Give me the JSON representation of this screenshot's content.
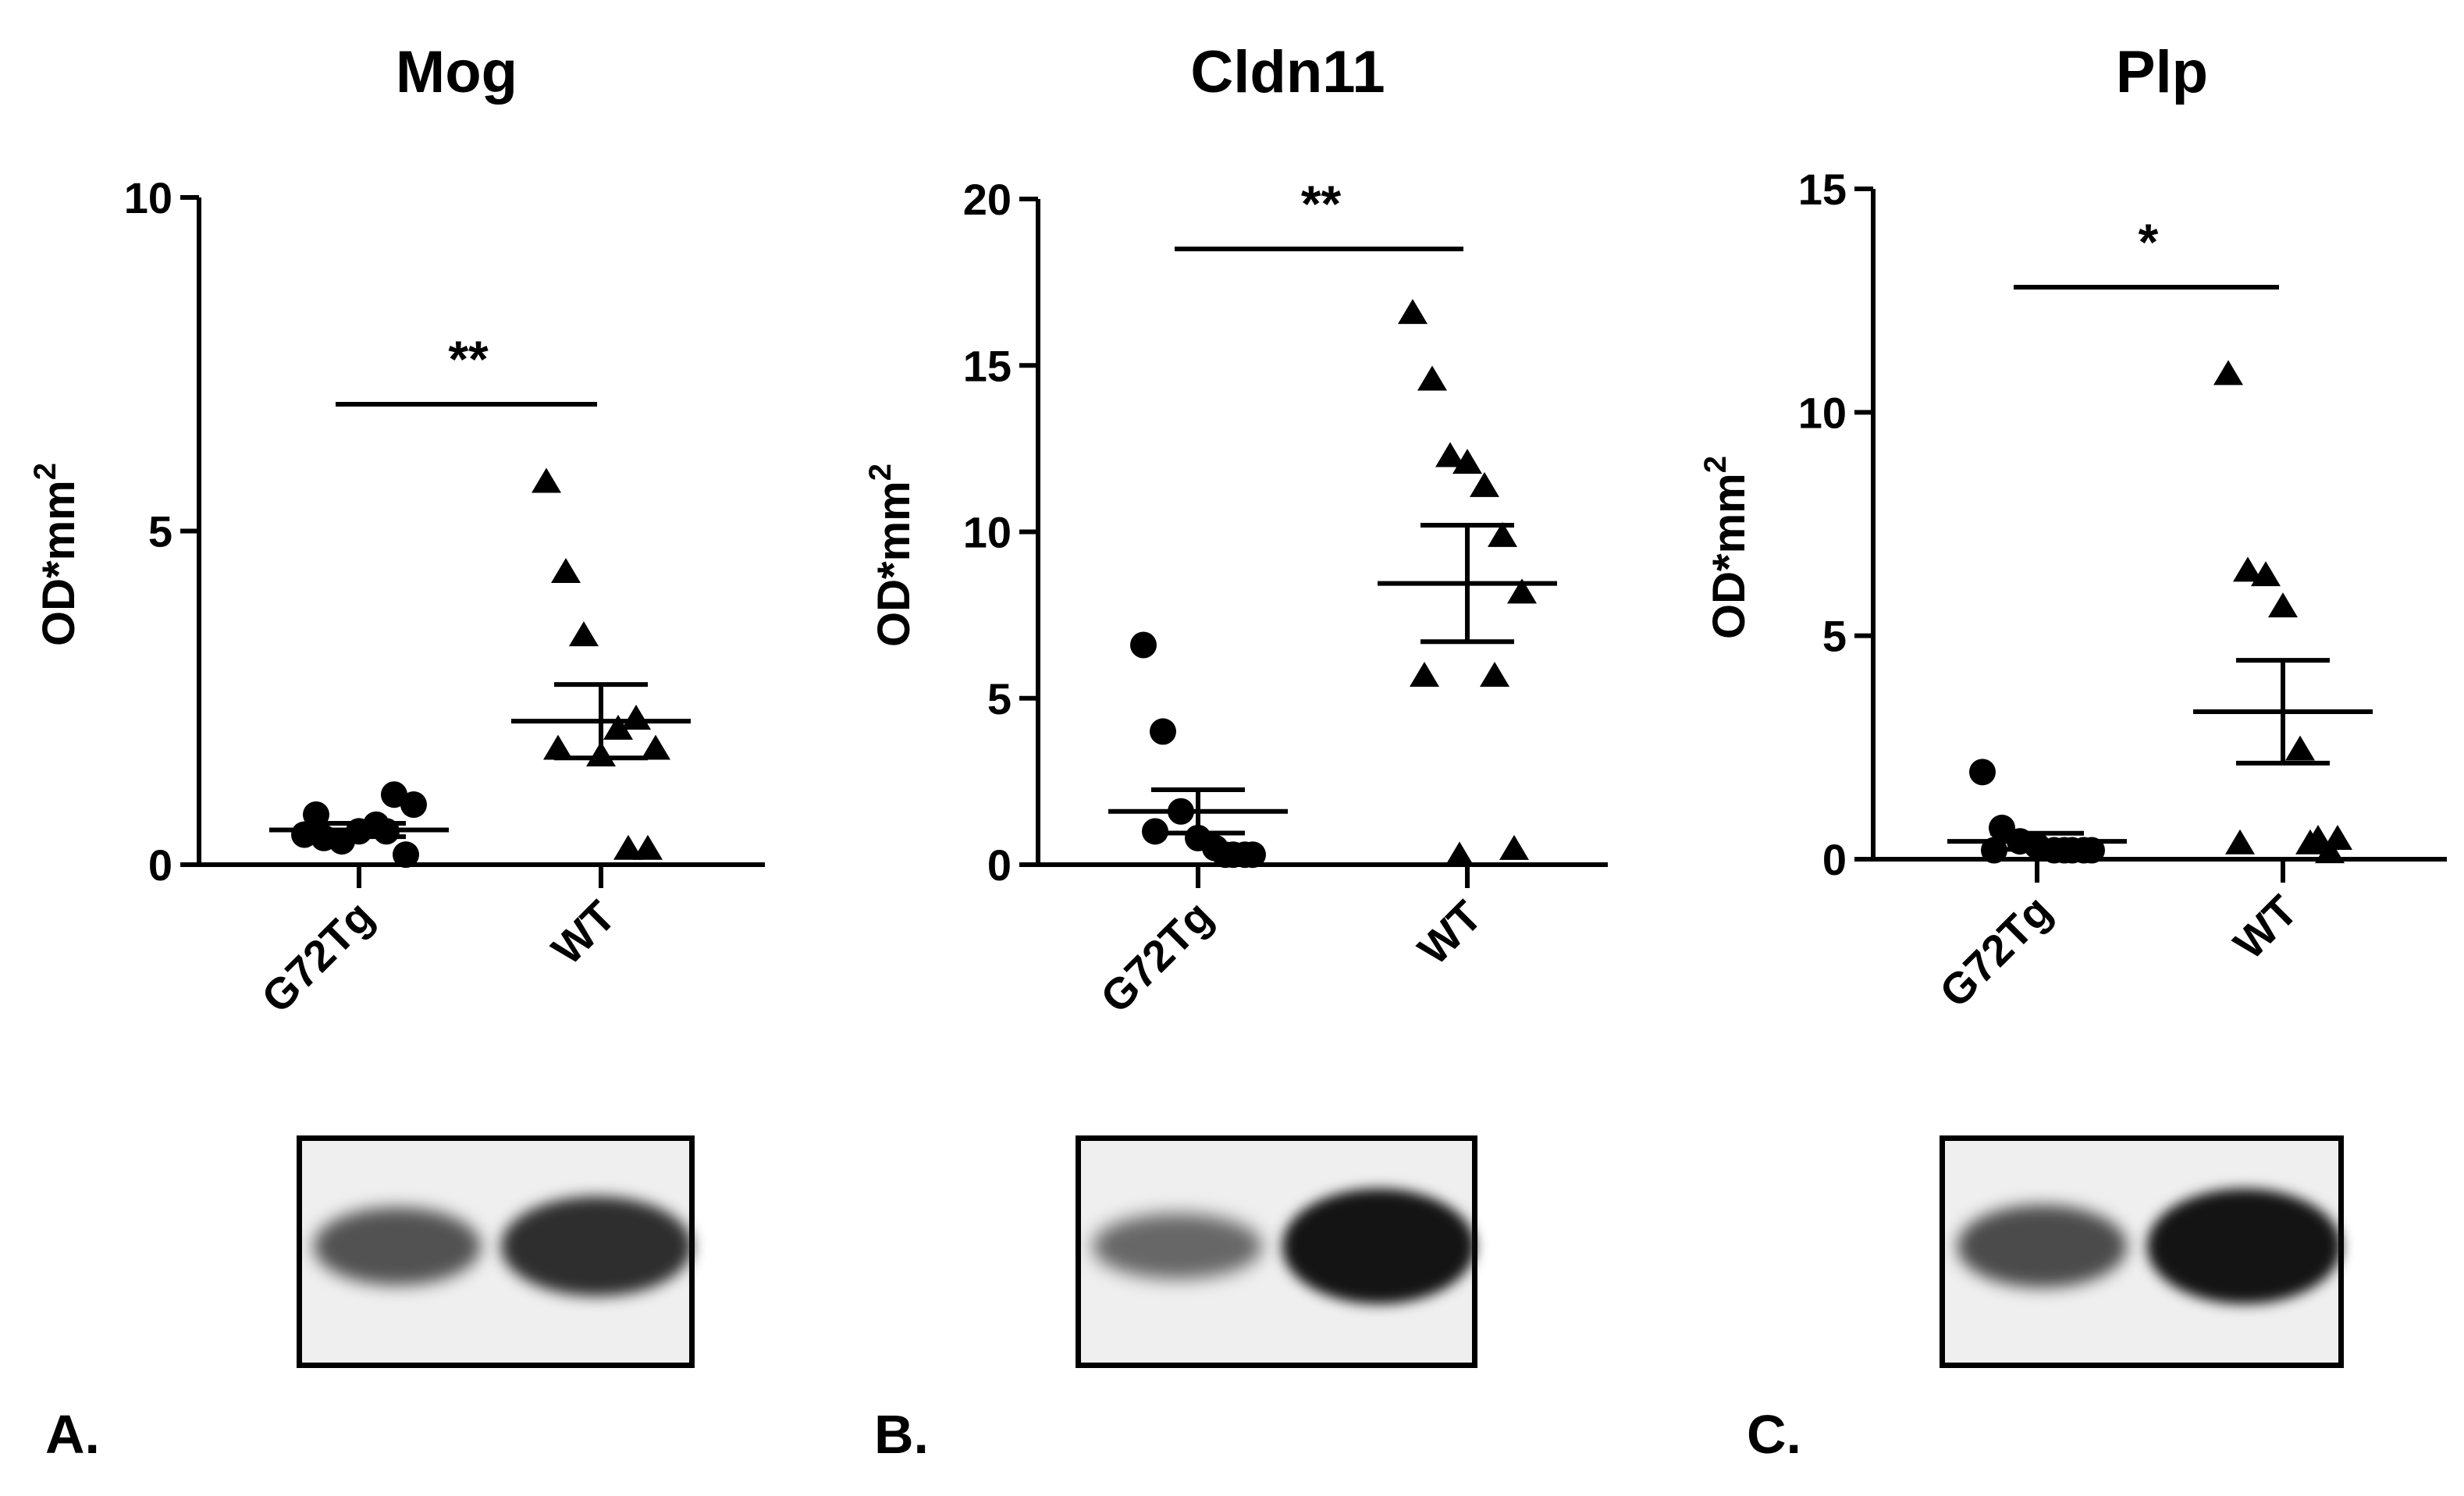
{
  "chart_data": [
    {
      "panel": "A.",
      "type": "scatter",
      "title": "Mog",
      "ylabel": "OD*mm2",
      "ylim": [
        0,
        10
      ],
      "yticks": [
        0,
        5,
        10
      ],
      "categories": [
        "G72Tg",
        "WT"
      ],
      "series": [
        {
          "category": "G72Tg",
          "marker": "circle",
          "values": [
            0.45,
            0.4,
            0.35,
            0.5,
            0.6,
            1.05,
            0.9,
            0.75,
            0.5,
            0.15
          ],
          "mean": 0.52,
          "sem": 0.1
        },
        {
          "category": "WT",
          "marker": "triangle",
          "values": [
            5.7,
            4.35,
            3.4,
            1.6,
            2.0,
            2.15,
            1.7,
            1.7,
            0.2,
            0.2
          ],
          "mean": 2.15,
          "sem": 0.55
        }
      ],
      "significance": {
        "label": "**",
        "y": 6.9
      }
    },
    {
      "panel": "B.",
      "type": "scatter",
      "title": "Cldn11",
      "ylabel": "OD*mm2",
      "ylim": [
        0,
        20
      ],
      "yticks": [
        0,
        5,
        10,
        15,
        20
      ],
      "categories": [
        "G72Tg",
        "WT"
      ],
      "series": [
        {
          "category": "G72Tg",
          "marker": "circle",
          "values": [
            6.6,
            4.0,
            1.6,
            0.8,
            0.5,
            0.3,
            0.3,
            1.0,
            0.3,
            0.3
          ],
          "mean": 1.6,
          "sem": 0.65
        },
        {
          "category": "WT",
          "marker": "triangle",
          "values": [
            16.5,
            14.5,
            12.2,
            12.0,
            11.3,
            9.8,
            8.1,
            5.6,
            5.6,
            0.4,
            0.2
          ],
          "mean": 8.45,
          "sem": 1.75
        }
      ],
      "significance": {
        "label": "**",
        "y": 18.5
      }
    },
    {
      "panel": "C.",
      "type": "scatter",
      "title": "Plp",
      "ylabel": "OD*mm2",
      "ylim": [
        0,
        15
      ],
      "yticks": [
        0,
        5,
        10,
        15
      ],
      "categories": [
        "G72Tg",
        "WT"
      ],
      "series": [
        {
          "category": "G72Tg",
          "marker": "circle",
          "values": [
            1.95,
            0.7,
            0.4,
            0.3,
            0.2,
            0.2,
            0.2,
            0.2,
            0.2,
            0.2
          ],
          "mean": 0.4,
          "sem": 0.18
        },
        {
          "category": "WT",
          "marker": "triangle",
          "values": [
            10.8,
            6.4,
            6.3,
            5.6,
            2.4,
            0.4,
            0.4,
            0.3,
            0.3,
            0.1
          ],
          "mean": 3.3,
          "sem": 1.15
        }
      ],
      "significance": {
        "label": "*",
        "y": 12.8
      }
    }
  ],
  "blots": [
    {
      "panel": "A.",
      "lane1_intensity": 0.55,
      "lane2_intensity": 0.8
    },
    {
      "panel": "B.",
      "lane1_intensity": 0.4,
      "lane2_intensity": 0.98
    },
    {
      "panel": "C.",
      "lane1_intensity": 0.6,
      "lane2_intensity": 0.98
    }
  ],
  "colors": {
    "ink": "#000000",
    "blot_background": "#efefef",
    "band": "#111111"
  }
}
